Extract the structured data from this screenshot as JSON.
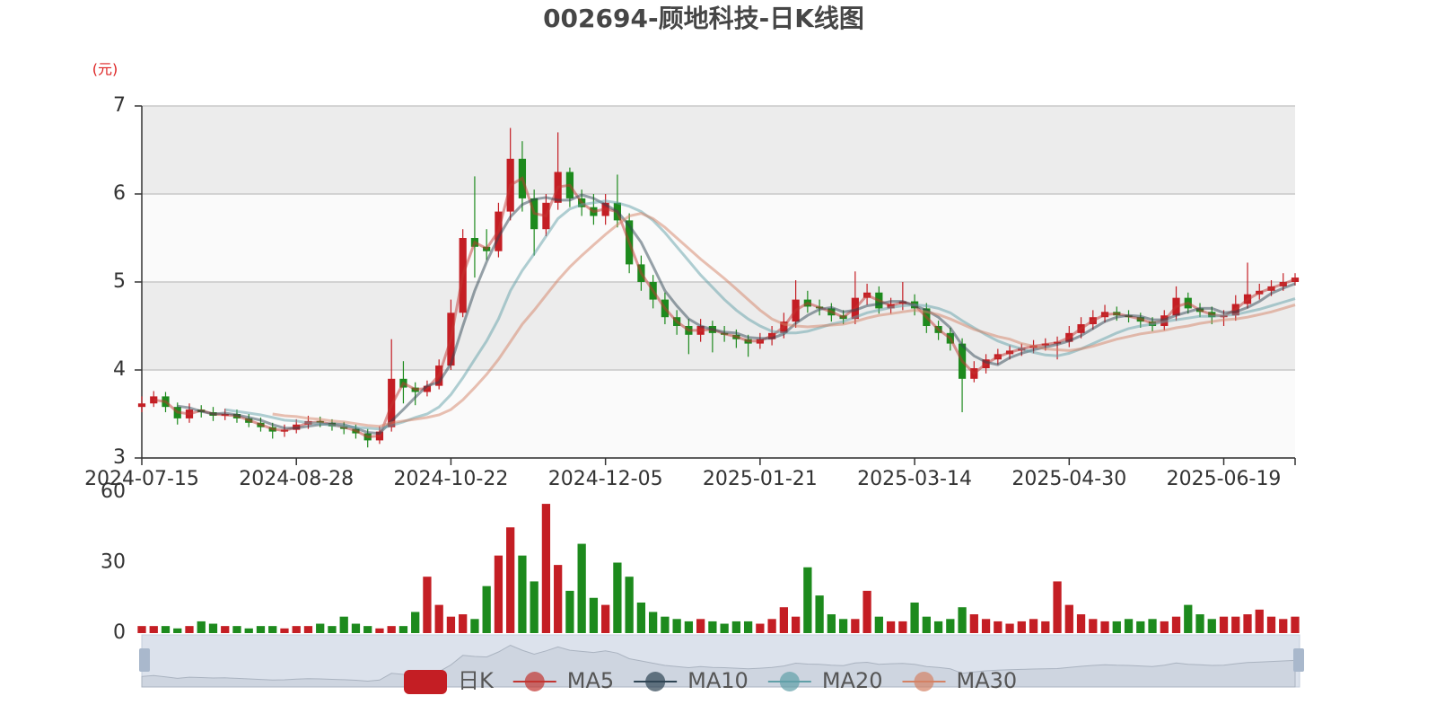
{
  "chart_data": [
    {
      "type": "candlestick",
      "title": "002694-顾地科技-日K线图",
      "unit_label": "(元)",
      "name": "日K",
      "up_color": "#c41e24",
      "down_color": "#1d8a1d",
      "categories": [
        "2024-07-15",
        null,
        null,
        null,
        null,
        null,
        null,
        null,
        null,
        null,
        null,
        null,
        null,
        "2024-08-28",
        null,
        null,
        null,
        null,
        null,
        null,
        null,
        null,
        null,
        null,
        null,
        null,
        "2024-10-22",
        null,
        null,
        null,
        null,
        null,
        null,
        null,
        null,
        null,
        null,
        null,
        null,
        "2024-12-05",
        null,
        null,
        null,
        null,
        null,
        null,
        null,
        null,
        null,
        null,
        null,
        null,
        "2025-01-21",
        null,
        null,
        null,
        null,
        null,
        null,
        null,
        null,
        null,
        null,
        null,
        null,
        "2025-03-14",
        null,
        null,
        null,
        null,
        null,
        null,
        null,
        null,
        null,
        null,
        null,
        null,
        "2025-04-30",
        null,
        null,
        null,
        null,
        null,
        null,
        null,
        null,
        null,
        null,
        null,
        null,
        "2025-06-19",
        null,
        null,
        null,
        null,
        null,
        null
      ],
      "open": [
        3.58,
        3.62,
        3.7,
        3.58,
        3.45,
        3.55,
        3.52,
        3.48,
        3.5,
        3.45,
        3.4,
        3.35,
        3.3,
        3.32,
        3.38,
        3.42,
        3.4,
        3.36,
        3.33,
        3.28,
        3.2,
        3.35,
        3.9,
        3.8,
        3.75,
        3.82,
        4.05,
        4.65,
        5.5,
        5.4,
        5.35,
        5.8,
        6.4,
        5.95,
        5.6,
        5.9,
        6.25,
        5.95,
        5.85,
        5.75,
        5.9,
        5.7,
        5.2,
        5.0,
        4.8,
        4.6,
        4.5,
        4.4,
        4.5,
        4.42,
        4.4,
        4.35,
        4.3,
        4.35,
        4.42,
        4.55,
        4.8,
        4.72,
        4.7,
        4.62,
        4.58,
        4.82,
        4.88,
        4.7,
        4.75,
        4.78,
        4.7,
        4.5,
        4.42,
        4.3,
        3.9,
        4.02,
        4.12,
        4.18,
        4.22,
        4.25,
        4.28,
        4.3,
        4.32,
        4.42,
        4.52,
        4.6,
        4.66,
        4.62,
        4.6,
        4.55,
        4.5,
        4.62,
        4.82,
        4.7,
        4.66,
        4.6,
        4.62,
        4.75,
        4.86,
        4.9,
        4.95,
        5.0
      ],
      "close": [
        3.62,
        3.7,
        3.58,
        3.45,
        3.55,
        3.52,
        3.48,
        3.5,
        3.45,
        3.4,
        3.35,
        3.3,
        3.32,
        3.38,
        3.42,
        3.4,
        3.36,
        3.33,
        3.28,
        3.2,
        3.3,
        3.9,
        3.8,
        3.75,
        3.82,
        4.05,
        4.65,
        5.5,
        5.4,
        5.35,
        5.8,
        6.4,
        5.95,
        5.6,
        5.9,
        6.25,
        5.95,
        5.85,
        5.75,
        5.9,
        5.7,
        5.2,
        5.0,
        4.8,
        4.6,
        4.5,
        4.4,
        4.5,
        4.42,
        4.4,
        4.35,
        4.3,
        4.35,
        4.42,
        4.55,
        4.8,
        4.72,
        4.7,
        4.62,
        4.58,
        4.82,
        4.88,
        4.7,
        4.75,
        4.78,
        4.7,
        4.5,
        4.42,
        4.3,
        3.9,
        4.02,
        4.12,
        4.18,
        4.22,
        4.25,
        4.28,
        4.3,
        4.32,
        4.42,
        4.52,
        4.6,
        4.66,
        4.62,
        4.6,
        4.55,
        4.5,
        4.62,
        4.82,
        4.7,
        4.66,
        4.6,
        4.62,
        4.75,
        4.86,
        4.9,
        4.95,
        5.0,
        5.05
      ],
      "low": [
        3.52,
        3.58,
        3.52,
        3.38,
        3.4,
        3.46,
        3.42,
        3.43,
        3.4,
        3.35,
        3.3,
        3.22,
        3.24,
        3.28,
        3.33,
        3.35,
        3.31,
        3.27,
        3.22,
        3.12,
        3.16,
        3.3,
        3.62,
        3.6,
        3.7,
        3.78,
        4.0,
        4.6,
        5.05,
        5.25,
        5.28,
        5.7,
        5.8,
        5.3,
        5.52,
        5.82,
        5.85,
        5.75,
        5.65,
        5.65,
        5.62,
        5.1,
        4.9,
        4.7,
        4.52,
        4.4,
        4.18,
        4.32,
        4.2,
        4.32,
        4.25,
        4.15,
        4.24,
        4.28,
        4.36,
        4.48,
        4.65,
        4.62,
        4.55,
        4.52,
        4.52,
        4.74,
        4.64,
        4.64,
        4.68,
        4.62,
        4.42,
        4.34,
        4.22,
        3.52,
        3.86,
        3.96,
        4.06,
        4.12,
        4.16,
        4.19,
        4.22,
        4.12,
        4.26,
        4.36,
        4.46,
        4.54,
        4.56,
        4.54,
        4.48,
        4.44,
        4.45,
        4.56,
        4.64,
        4.6,
        4.52,
        4.5,
        4.56,
        4.7,
        4.8,
        4.84,
        4.9,
        4.96
      ],
      "high": [
        3.7,
        3.76,
        3.75,
        3.63,
        3.62,
        3.6,
        3.58,
        3.56,
        3.55,
        3.5,
        3.46,
        3.4,
        3.38,
        3.44,
        3.48,
        3.47,
        3.44,
        3.41,
        3.38,
        3.33,
        3.36,
        4.35,
        4.1,
        3.86,
        3.88,
        4.12,
        4.8,
        5.6,
        6.2,
        5.6,
        5.9,
        6.75,
        6.6,
        6.05,
        6.0,
        6.7,
        6.3,
        6.05,
        6.0,
        6.0,
        6.22,
        5.78,
        5.3,
        5.08,
        4.88,
        4.68,
        4.58,
        4.58,
        4.56,
        4.5,
        4.46,
        4.4,
        4.42,
        4.5,
        4.65,
        5.02,
        4.9,
        4.8,
        4.76,
        4.68,
        5.12,
        4.98,
        4.95,
        4.82,
        5.0,
        4.86,
        4.76,
        4.56,
        4.48,
        4.36,
        4.1,
        4.18,
        4.24,
        4.28,
        4.3,
        4.34,
        4.36,
        4.38,
        4.5,
        4.6,
        4.68,
        4.74,
        4.72,
        4.68,
        4.65,
        4.6,
        4.68,
        4.95,
        4.88,
        4.76,
        4.72,
        4.68,
        4.85,
        5.22,
        4.98,
        5.02,
        5.1,
        5.1
      ],
      "series": [
        {
          "name": "MA5",
          "color": "#c23531",
          "values": [
            null,
            3.66,
            3.64,
            3.52,
            3.5,
            3.54,
            3.5,
            3.49,
            3.48,
            3.43,
            3.38,
            3.33,
            3.31,
            3.35,
            3.4,
            3.41,
            3.38,
            3.35,
            3.31,
            3.24,
            3.25,
            3.6,
            3.85,
            3.78,
            3.79,
            3.94,
            4.35,
            5.08,
            5.45,
            5.38,
            5.58,
            6.1,
            6.18,
            5.78,
            5.75,
            6.08,
            6.1,
            5.9,
            5.8,
            5.83,
            5.8,
            5.45,
            5.1,
            4.9,
            4.7,
            4.55,
            4.45,
            4.45,
            4.46,
            4.41,
            4.38,
            4.33,
            4.33,
            4.39,
            4.49,
            4.68,
            4.76,
            4.71,
            4.66,
            4.6,
            4.7,
            4.85,
            4.79,
            4.73,
            4.77,
            4.74,
            4.6,
            4.46,
            4.36,
            4.1,
            3.96,
            4.07,
            4.15,
            4.2,
            4.24,
            4.27,
            4.29,
            4.31,
            4.37,
            4.47,
            4.56,
            4.63,
            4.64,
            4.61,
            4.58,
            4.53,
            4.56,
            4.72,
            4.76,
            4.68,
            4.63,
            4.61,
            4.69,
            4.8,
            4.88,
            4.93,
            4.98,
            5.03
          ]
        },
        {
          "name": "MA10",
          "color": "#2f4554",
          "values": [
            null,
            null,
            null,
            3.59,
            3.57,
            3.53,
            3.5,
            3.51,
            3.49,
            3.46,
            3.43,
            3.38,
            3.34,
            3.34,
            3.36,
            3.38,
            3.39,
            3.38,
            3.34,
            3.29,
            3.28,
            3.42,
            3.55,
            3.69,
            3.82,
            3.86,
            4.07,
            4.5,
            4.9,
            5.23,
            5.51,
            5.74,
            5.88,
            5.94,
            5.96,
            5.93,
            5.93,
            5.99,
            5.95,
            5.88,
            5.8,
            5.64,
            5.45,
            5.18,
            4.9,
            4.73,
            4.58,
            4.5,
            4.46,
            4.43,
            4.42,
            4.37,
            4.36,
            4.36,
            4.41,
            4.53,
            4.62,
            4.69,
            4.71,
            4.66,
            4.68,
            4.73,
            4.75,
            4.78,
            4.78,
            4.73,
            4.68,
            4.6,
            4.48,
            4.28,
            4.16,
            4.09,
            4.06,
            4.14,
            4.19,
            4.23,
            4.26,
            4.29,
            4.33,
            4.39,
            4.47,
            4.55,
            4.6,
            4.62,
            4.61,
            4.57,
            4.57,
            4.62,
            4.66,
            4.7,
            4.7,
            4.65,
            4.66,
            4.71,
            4.78,
            4.87,
            4.93,
            4.98
          ]
        },
        {
          "name": "MA20",
          "color": "#61a0a8",
          "values": [
            null,
            null,
            null,
            null,
            null,
            null,
            null,
            3.55,
            3.53,
            3.51,
            3.49,
            3.46,
            3.43,
            3.42,
            3.4,
            3.39,
            3.37,
            3.36,
            3.35,
            3.34,
            3.33,
            3.37,
            3.41,
            3.46,
            3.5,
            3.58,
            3.72,
            3.91,
            4.12,
            4.33,
            4.58,
            4.9,
            5.13,
            5.32,
            5.52,
            5.72,
            5.83,
            5.88,
            5.9,
            5.92,
            5.9,
            5.86,
            5.8,
            5.7,
            5.56,
            5.4,
            5.24,
            5.08,
            4.94,
            4.8,
            4.68,
            4.58,
            4.5,
            4.44,
            4.42,
            4.42,
            4.44,
            4.48,
            4.52,
            4.55,
            4.6,
            4.65,
            4.68,
            4.71,
            4.73,
            4.74,
            4.73,
            4.7,
            4.65,
            4.56,
            4.48,
            4.4,
            4.33,
            4.28,
            4.24,
            4.2,
            4.17,
            4.16,
            4.19,
            4.24,
            4.3,
            4.36,
            4.42,
            4.47,
            4.5,
            4.52,
            4.55,
            4.57,
            4.59,
            4.61,
            4.61,
            4.62,
            4.63,
            4.66,
            4.69,
            4.73,
            4.77,
            4.81
          ]
        },
        {
          "name": "MA30",
          "color": "#d48265",
          "values": [
            null,
            null,
            null,
            null,
            null,
            null,
            null,
            null,
            null,
            null,
            null,
            3.5,
            3.48,
            3.47,
            3.45,
            3.44,
            3.42,
            3.41,
            3.39,
            3.37,
            3.36,
            3.4,
            3.42,
            3.44,
            3.46,
            3.49,
            3.55,
            3.66,
            3.8,
            3.95,
            4.12,
            4.32,
            4.52,
            4.68,
            4.85,
            5.02,
            5.17,
            5.3,
            5.42,
            5.54,
            5.65,
            5.75,
            5.78,
            5.72,
            5.62,
            5.5,
            5.38,
            5.26,
            5.15,
            5.04,
            4.92,
            4.8,
            4.68,
            4.58,
            4.52,
            4.5,
            4.49,
            4.5,
            4.51,
            4.52,
            4.55,
            4.59,
            4.62,
            4.64,
            4.66,
            4.68,
            4.66,
            4.63,
            4.58,
            4.52,
            4.46,
            4.42,
            4.38,
            4.35,
            4.3,
            4.27,
            4.24,
            4.23,
            4.22,
            4.24,
            4.27,
            4.31,
            4.35,
            4.38,
            4.41,
            4.43,
            4.45,
            4.48,
            4.5,
            4.53,
            4.55,
            4.57,
            4.58,
            4.6,
            4.63,
            4.66,
            4.7,
            4.74
          ]
        }
      ],
      "line_opacity": 0.5,
      "ylim": [
        3,
        7
      ],
      "yticks": [
        3,
        4,
        5,
        6,
        7
      ],
      "grid": true,
      "split_area": true,
      "legend": "bottom"
    },
    {
      "type": "bar",
      "values": [
        3,
        3,
        3,
        2,
        3,
        5,
        4,
        3,
        3,
        2,
        3,
        3,
        2,
        3,
        3,
        4,
        3,
        7,
        4,
        3,
        2,
        3,
        3,
        9,
        24,
        12,
        7,
        8,
        6,
        20,
        33,
        45,
        33,
        22,
        55,
        29,
        18,
        38,
        15,
        12,
        30,
        24,
        13,
        9,
        7,
        6,
        5,
        6,
        5,
        4,
        5,
        5,
        4,
        6,
        11,
        7,
        28,
        16,
        8,
        6,
        6,
        18,
        7,
        5,
        5,
        13,
        7,
        5,
        6,
        11,
        8,
        6,
        5,
        4,
        5,
        6,
        5,
        22,
        12,
        8,
        6,
        5,
        5,
        6,
        5,
        6,
        5,
        7,
        12,
        8,
        6,
        7,
        7,
        8,
        10,
        7,
        6,
        7
      ],
      "ylim": [
        0,
        60
      ],
      "yticks": [
        0,
        30,
        60
      ]
    }
  ]
}
